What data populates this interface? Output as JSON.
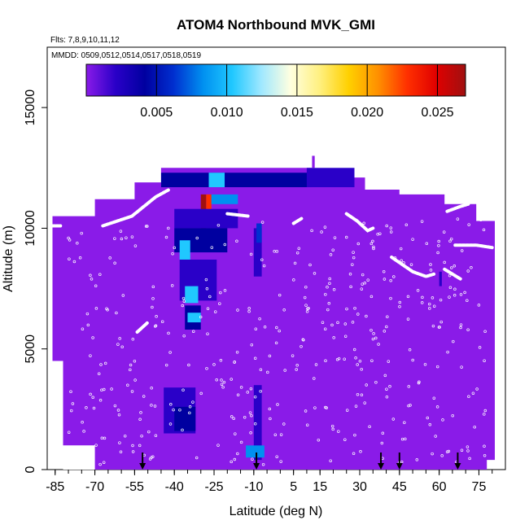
{
  "chart_data": {
    "type": "heatmap",
    "title": "ATOM4 Northbound MVK_GMI",
    "flights_label": "Flts: 7,8,9,10,11,12",
    "mmdd_label": "MMDD: 0509,0512,0514,0517,0518,0519",
    "xlabel": "Latitude (deg N)",
    "ylabel": "Altitude (m)",
    "xlim": [
      -88,
      85
    ],
    "ylim": [
      0,
      17500
    ],
    "x_ticks": [
      -85,
      -70,
      -55,
      -40,
      -25,
      -10,
      5,
      15,
      30,
      45,
      60,
      75
    ],
    "y_ticks": [
      0,
      5000,
      10000,
      15000
    ],
    "y_tick_labels": [
      "0",
      "5000",
      "10000",
      "15000"
    ],
    "colorbar": {
      "range": [
        0.0,
        0.027
      ],
      "ticks": [
        0.005,
        0.01,
        0.015,
        0.02,
        0.025
      ],
      "tick_labels": [
        "0.005",
        "0.010",
        "0.015",
        "0.020",
        "0.025"
      ],
      "colors": [
        "#8a1be8",
        "#2a00c8",
        "#0000a0",
        "#0030d0",
        "#0090f0",
        "#20c8ff",
        "#a0e8ff",
        "#ffffe0",
        "#fff080",
        "#ffd000",
        "#ff9000",
        "#ff3000",
        "#e00000",
        "#a01010"
      ]
    },
    "background_value": 0.0,
    "enhanced_cells": [
      {
        "lat": -45,
        "lat2": 12,
        "alt": 11700,
        "alt2": 12300,
        "value": 0.004
      },
      {
        "lat": 10,
        "lat2": 28,
        "alt": 11700,
        "alt2": 12500,
        "value": 0.003
      },
      {
        "lat": -27,
        "lat2": -21,
        "alt": 11700,
        "alt2": 12300,
        "value": 0.011
      },
      {
        "lat": -28,
        "lat2": -26,
        "alt": 10400,
        "alt2": 11400,
        "value": 0.022
      },
      {
        "lat": -30,
        "lat2": -28,
        "alt": 10000,
        "alt2": 11400,
        "value": 0.026
      },
      {
        "lat": -26,
        "lat2": -16,
        "alt": 11000,
        "alt2": 11400,
        "value": 0.008
      },
      {
        "lat": -40,
        "lat2": -16,
        "alt": 10000,
        "alt2": 10800,
        "value": 0.003
      },
      {
        "lat": -40,
        "lat2": -20,
        "alt": 9000,
        "alt2": 10000,
        "value": 0.004
      },
      {
        "lat": -38,
        "lat2": -34,
        "alt": 8700,
        "alt2": 9500,
        "value": 0.01
      },
      {
        "lat": -38,
        "lat2": -24,
        "alt": 7000,
        "alt2": 8700,
        "value": 0.003
      },
      {
        "lat": -36,
        "lat2": -31,
        "alt": 6900,
        "alt2": 7600,
        "value": 0.011
      },
      {
        "lat": -36,
        "lat2": -30,
        "alt": 5800,
        "alt2": 6800,
        "value": 0.005
      },
      {
        "lat": -35,
        "lat2": -30,
        "alt": 6100,
        "alt2": 6500,
        "value": 0.01
      },
      {
        "lat": -44,
        "lat2": -32,
        "alt": 1500,
        "alt2": 3400,
        "value": 0.003
      },
      {
        "lat": -40,
        "lat2": -32,
        "alt": 1600,
        "alt2": 2600,
        "value": 0.004
      },
      {
        "lat": -10,
        "lat2": -7,
        "alt": 400,
        "alt2": 3500,
        "value": 0.002
      },
      {
        "lat": -13,
        "lat2": -6,
        "alt": 500,
        "alt2": 1000,
        "value": 0.009
      },
      {
        "lat": -10,
        "lat2": -7,
        "alt": 8000,
        "alt2": 10000,
        "value": 0.003
      },
      {
        "lat": -9,
        "lat2": -7,
        "alt": 9400,
        "alt2": 10200,
        "value": 0.007
      },
      {
        "lat": 60,
        "lat2": 61,
        "alt": 7600,
        "alt2": 8200,
        "value": 0.003
      }
    ],
    "flight_tracks": [
      {
        "points": [
          [
            -67,
            10100
          ],
          [
            -56,
            10500
          ],
          [
            -47,
            11300
          ],
          [
            -42,
            11600
          ]
        ]
      },
      {
        "points": [
          [
            -20,
            10600
          ],
          [
            -12,
            10500
          ]
        ]
      },
      {
        "points": [
          [
            5,
            10200
          ],
          [
            8,
            10400
          ]
        ]
      },
      {
        "points": [
          [
            25,
            10600
          ],
          [
            29,
            10300
          ],
          [
            33,
            9900
          ],
          [
            35,
            10000
          ]
        ]
      },
      {
        "points": [
          [
            42,
            8800
          ],
          [
            50,
            8200
          ],
          [
            55,
            8000
          ],
          [
            58,
            8100
          ]
        ]
      },
      {
        "points": [
          [
            62,
            8300
          ],
          [
            68,
            7900
          ]
        ]
      },
      {
        "points": [
          [
            63,
            10700
          ],
          [
            68,
            10900
          ],
          [
            71,
            11000
          ]
        ]
      },
      {
        "points": [
          [
            66,
            9300
          ],
          [
            74,
            9300
          ],
          [
            80,
            9200
          ]
        ]
      },
      {
        "points": [
          [
            -86,
            10100
          ],
          [
            -83,
            10100
          ]
        ]
      },
      {
        "points": [
          [
            -54,
            5700
          ],
          [
            -50,
            6100
          ]
        ]
      }
    ],
    "arrow_latitudes": [
      -52,
      -9,
      38,
      45,
      67
    ]
  }
}
